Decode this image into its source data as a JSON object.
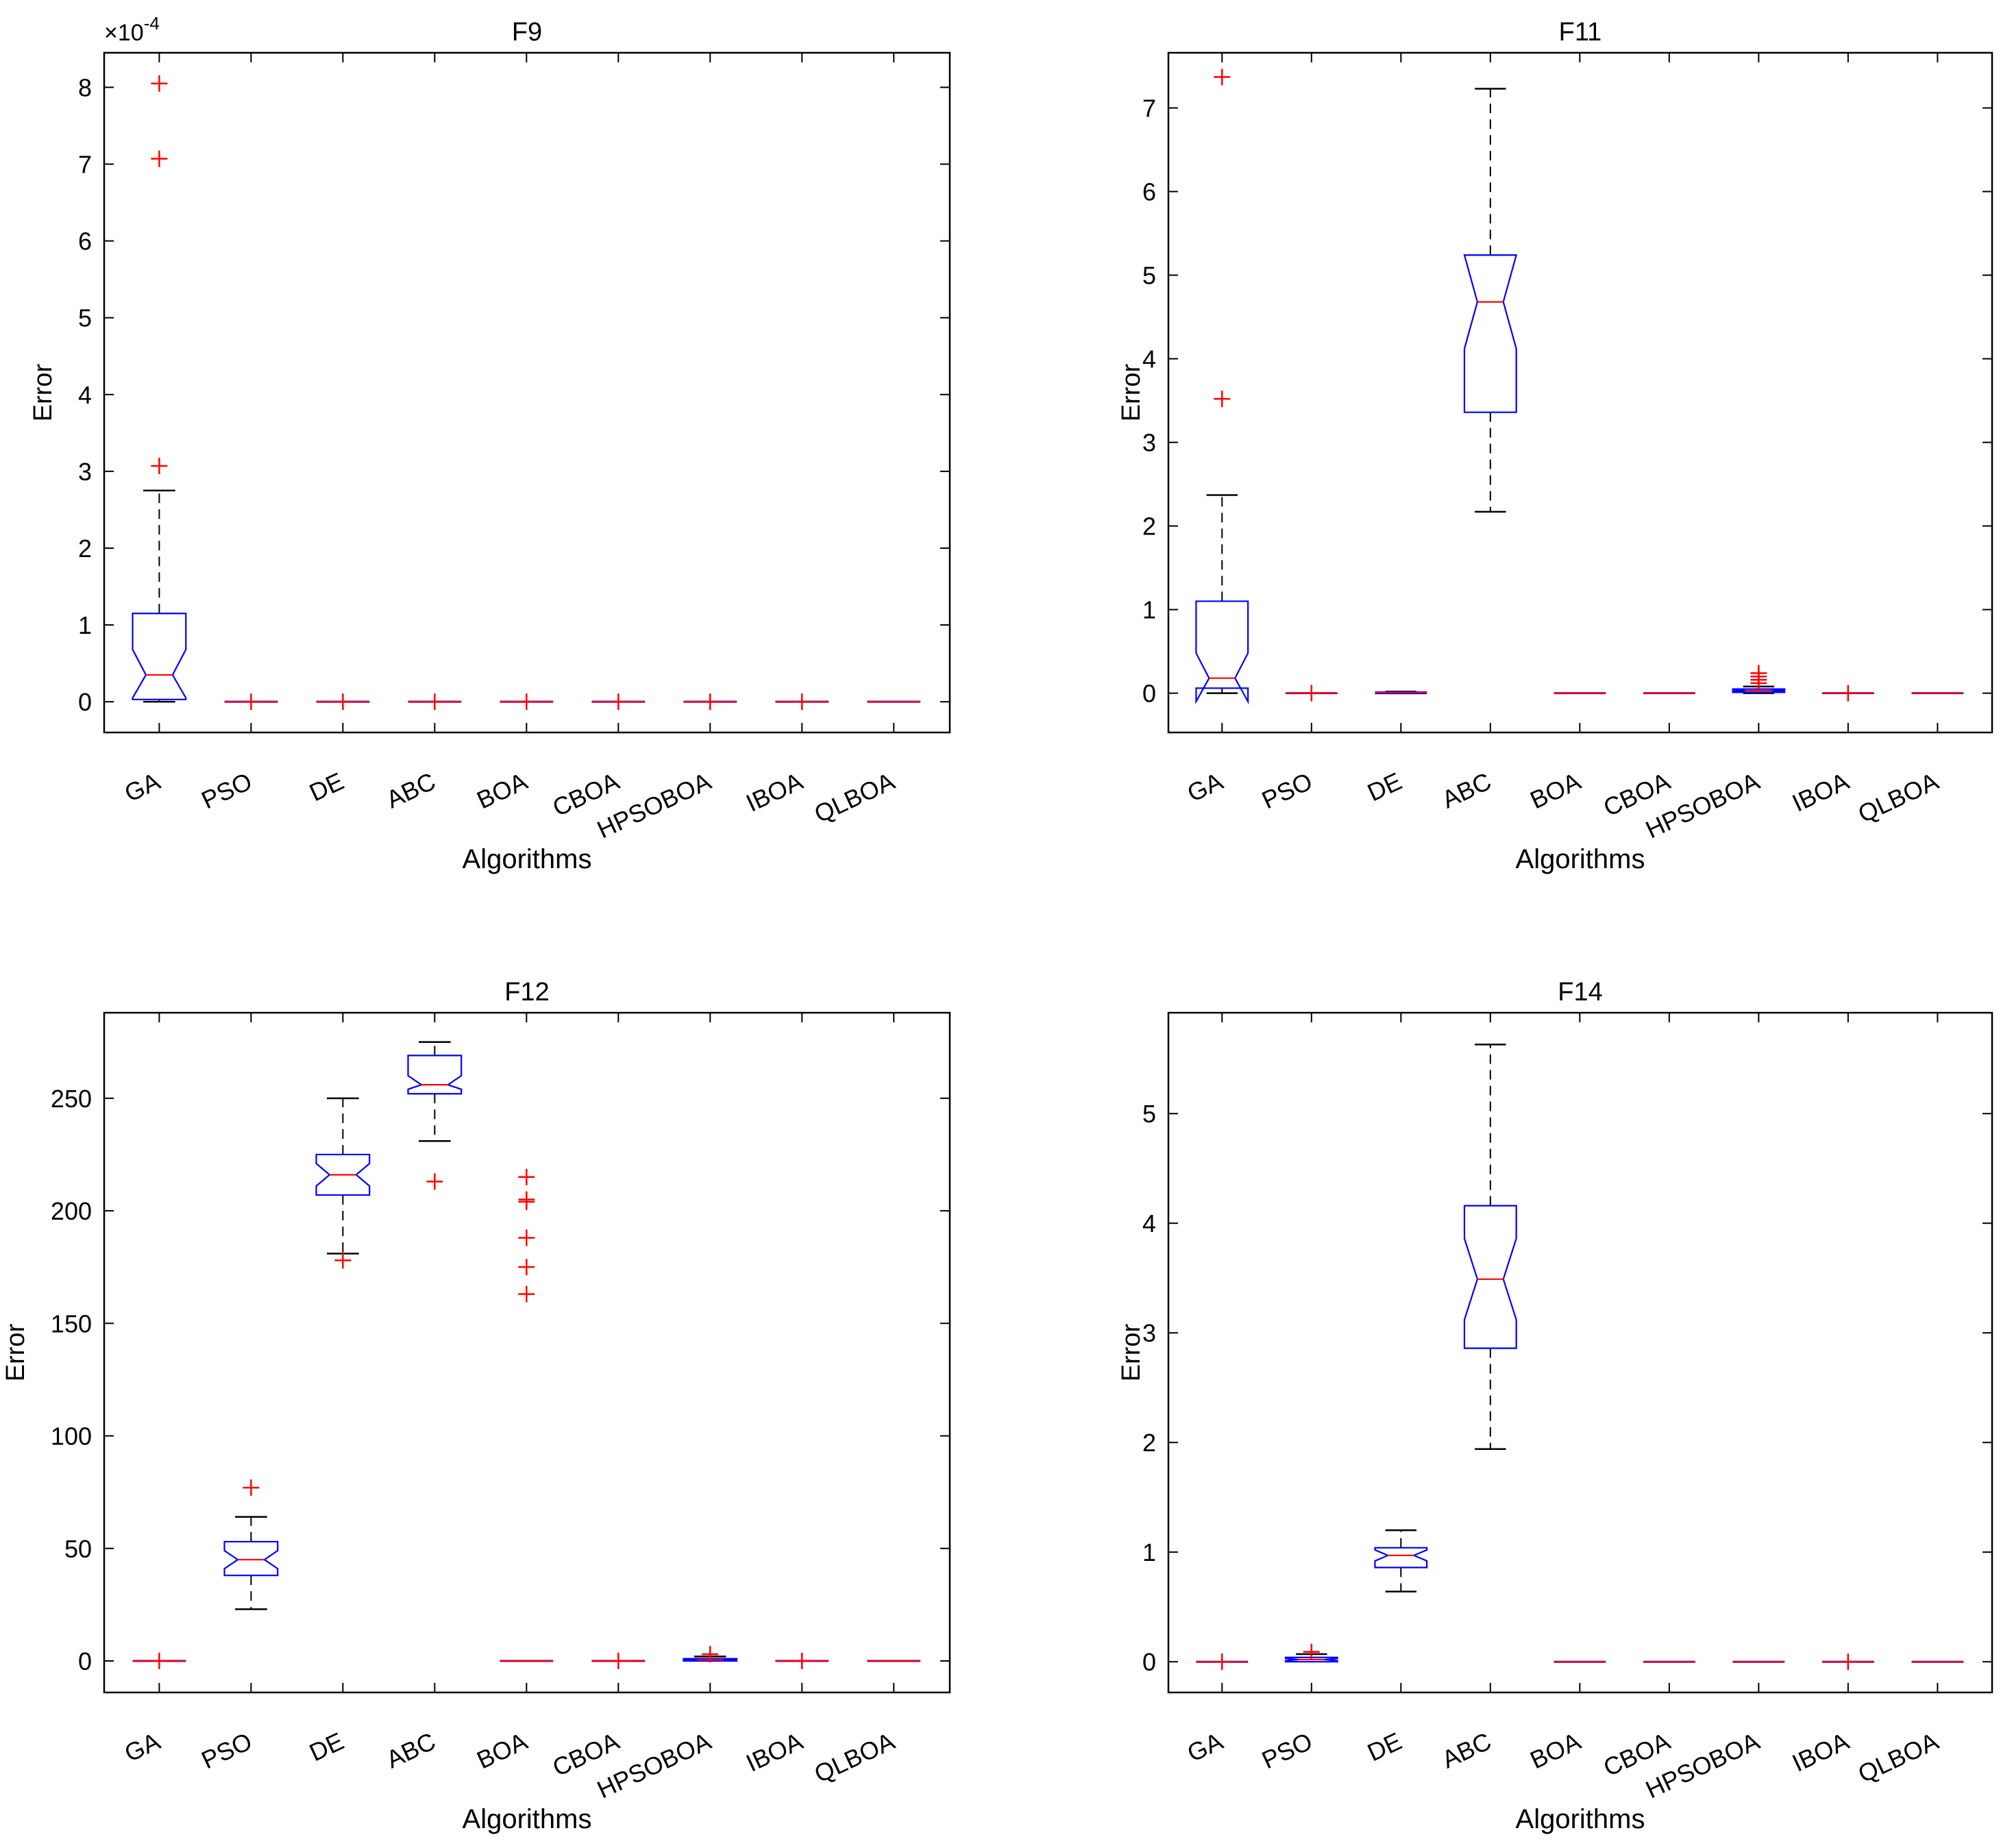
{
  "chart_data": [
    {
      "type": "boxplot",
      "title": "F9",
      "xlabel": "Algorithms",
      "ylabel": "Error",
      "exponent_label": "×10",
      "exponent_power": "-4",
      "scale": 0.0001,
      "ylim": [
        -0.4,
        8.45
      ],
      "yticks": [
        0,
        1,
        2,
        3,
        4,
        5,
        6,
        7,
        8
      ],
      "categories": [
        "GA",
        "PSO",
        "DE",
        "ABC",
        "BOA",
        "CBOA",
        "HPSOBOA",
        "IBOA",
        "QLBOA"
      ],
      "boxes": [
        {
          "wl": 0,
          "q1": 0.03,
          "med": 0.35,
          "q3": 1.15,
          "wh": 2.75,
          "nlo": 0.05,
          "nhi": 0.68,
          "outliers": [
            3.07,
            7.07,
            8.05
          ]
        },
        {
          "wl": 0,
          "q1": 0,
          "med": 0,
          "q3": 0,
          "wh": 0,
          "nlo": 0,
          "nhi": 0,
          "outliers": [
            0
          ]
        },
        {
          "wl": 0,
          "q1": 0,
          "med": 0,
          "q3": 0,
          "wh": 0,
          "nlo": 0,
          "nhi": 0,
          "outliers": [
            0
          ]
        },
        {
          "wl": 0,
          "q1": 0,
          "med": 0,
          "q3": 0,
          "wh": 0,
          "nlo": 0,
          "nhi": 0,
          "outliers": [
            0
          ]
        },
        {
          "wl": 0,
          "q1": 0,
          "med": 0,
          "q3": 0,
          "wh": 0,
          "nlo": 0,
          "nhi": 0,
          "outliers": [
            0
          ]
        },
        {
          "wl": 0,
          "q1": 0,
          "med": 0,
          "q3": 0,
          "wh": 0,
          "nlo": 0,
          "nhi": 0,
          "outliers": [
            0
          ]
        },
        {
          "wl": 0,
          "q1": 0,
          "med": 0,
          "q3": 0,
          "wh": 0,
          "nlo": 0,
          "nhi": 0,
          "outliers": [
            0
          ]
        },
        {
          "wl": 0,
          "q1": 0,
          "med": 0,
          "q3": 0,
          "wh": 0,
          "nlo": 0,
          "nhi": 0,
          "outliers": [
            0
          ]
        },
        {
          "wl": 0,
          "q1": 0,
          "med": 0,
          "q3": 0,
          "wh": 0,
          "nlo": 0,
          "nhi": 0,
          "outliers": []
        }
      ]
    },
    {
      "type": "boxplot",
      "title": "F11",
      "xlabel": "Algorithms",
      "ylabel": "Error",
      "ylim": [
        -0.47,
        7.66
      ],
      "yticks": [
        0,
        1,
        2,
        3,
        4,
        5,
        6,
        7
      ],
      "categories": [
        "GA",
        "PSO",
        "DE",
        "ABC",
        "BOA",
        "CBOA",
        "HPSOBOA",
        "IBOA",
        "QLBOA"
      ],
      "boxes": [
        {
          "wl": 0,
          "q1": 0.06,
          "med": 0.18,
          "q3": 1.1,
          "wh": 2.37,
          "nlo": -0.1,
          "nhi": 0.48,
          "outliers": [
            3.52,
            7.37
          ]
        },
        {
          "wl": 0,
          "q1": 0,
          "med": 0,
          "q3": 0,
          "wh": 0,
          "nlo": 0,
          "nhi": 0,
          "outliers": [
            0
          ]
        },
        {
          "wl": 0,
          "q1": 0,
          "med": 0.01,
          "q3": 0.01,
          "wh": 0.02,
          "nlo": 0,
          "nhi": 0.01,
          "outliers": []
        },
        {
          "wl": 2.17,
          "q1": 3.36,
          "med": 4.68,
          "q3": 5.24,
          "wh": 7.23,
          "nlo": 4.12,
          "nhi": 5.24,
          "outliers": []
        },
        {
          "wl": 0,
          "q1": 0,
          "med": 0,
          "q3": 0,
          "wh": 0,
          "nlo": 0,
          "nhi": 0,
          "outliers": []
        },
        {
          "wl": 0,
          "q1": 0,
          "med": 0,
          "q3": 0,
          "wh": 0,
          "nlo": 0,
          "nhi": 0,
          "outliers": []
        },
        {
          "wl": 0,
          "q1": 0.01,
          "med": 0.03,
          "q3": 0.05,
          "wh": 0.08,
          "nlo": 0.02,
          "nhi": 0.04,
          "outliers": [
            0.12,
            0.16,
            0.2,
            0.24
          ]
        },
        {
          "wl": 0,
          "q1": 0,
          "med": 0,
          "q3": 0,
          "wh": 0,
          "nlo": 0,
          "nhi": 0,
          "outliers": [
            0
          ]
        },
        {
          "wl": 0,
          "q1": 0,
          "med": 0,
          "q3": 0,
          "wh": 0,
          "nlo": 0,
          "nhi": 0,
          "outliers": []
        }
      ]
    },
    {
      "type": "boxplot",
      "title": "F12",
      "xlabel": "Algorithms",
      "ylabel": "Error",
      "ylim": [
        -14,
        288
      ],
      "yticks": [
        0,
        50,
        100,
        150,
        200,
        250
      ],
      "categories": [
        "GA",
        "PSO",
        "DE",
        "ABC",
        "BOA",
        "CBOA",
        "HPSOBOA",
        "IBOA",
        "QLBOA"
      ],
      "boxes": [
        {
          "wl": 0,
          "q1": 0,
          "med": 0,
          "q3": 0,
          "wh": 0,
          "nlo": 0,
          "nhi": 0,
          "outliers": [
            0
          ]
        },
        {
          "wl": 23,
          "q1": 38,
          "med": 45,
          "q3": 53,
          "wh": 64,
          "nlo": 41,
          "nhi": 49,
          "outliers": [
            77
          ]
        },
        {
          "wl": 181,
          "q1": 207,
          "med": 216,
          "q3": 225,
          "wh": 250,
          "nlo": 211,
          "nhi": 221,
          "outliers": [
            178
          ]
        },
        {
          "wl": 231,
          "q1": 252,
          "med": 256,
          "q3": 269,
          "wh": 275,
          "nlo": 254,
          "nhi": 260,
          "outliers": [
            213
          ]
        },
        {
          "wl": 0,
          "q1": 0,
          "med": 0,
          "q3": 0,
          "wh": 0,
          "nlo": 0,
          "nhi": 0,
          "outliers": [
            163,
            175,
            188,
            204,
            205,
            215
          ]
        },
        {
          "wl": 0,
          "q1": 0,
          "med": 0,
          "q3": 0,
          "wh": 0,
          "nlo": 0,
          "nhi": 0,
          "outliers": [
            0
          ]
        },
        {
          "wl": 0,
          "q1": 0,
          "med": 0.5,
          "q3": 1,
          "wh": 2,
          "nlo": 0.3,
          "nhi": 0.7,
          "outliers": [
            3
          ]
        },
        {
          "wl": 0,
          "q1": 0,
          "med": 0,
          "q3": 0,
          "wh": 0,
          "nlo": 0,
          "nhi": 0,
          "outliers": [
            0
          ]
        },
        {
          "wl": 0,
          "q1": 0,
          "med": 0,
          "q3": 0,
          "wh": 0,
          "nlo": 0,
          "nhi": 0,
          "outliers": []
        }
      ]
    },
    {
      "type": "boxplot",
      "title": "F14",
      "xlabel": "Algorithms",
      "ylabel": "Error",
      "ylim": [
        -0.28,
        5.92
      ],
      "yticks": [
        0,
        1,
        2,
        3,
        4,
        5
      ],
      "categories": [
        "GA",
        "PSO",
        "DE",
        "ABC",
        "BOA",
        "CBOA",
        "HPSOBOA",
        "IBOA",
        "QLBOA"
      ],
      "boxes": [
        {
          "wl": 0,
          "q1": 0,
          "med": 0,
          "q3": 0,
          "wh": 0,
          "nlo": 0,
          "nhi": 0,
          "outliers": [
            0
          ]
        },
        {
          "wl": 0,
          "q1": 0,
          "med": 0.02,
          "q3": 0.04,
          "wh": 0.07,
          "nlo": 0.01,
          "nhi": 0.03,
          "outliers": [
            0.09
          ]
        },
        {
          "wl": 0.64,
          "q1": 0.86,
          "med": 0.97,
          "q3": 1.04,
          "wh": 1.2,
          "nlo": 0.92,
          "nhi": 1.02,
          "outliers": []
        },
        {
          "wl": 1.94,
          "q1": 2.86,
          "med": 3.49,
          "q3": 4.16,
          "wh": 5.63,
          "nlo": 3.12,
          "nhi": 3.86,
          "outliers": []
        },
        {
          "wl": 0,
          "q1": 0,
          "med": 0,
          "q3": 0,
          "wh": 0,
          "nlo": 0,
          "nhi": 0,
          "outliers": []
        },
        {
          "wl": 0,
          "q1": 0,
          "med": 0,
          "q3": 0,
          "wh": 0,
          "nlo": 0,
          "nhi": 0,
          "outliers": []
        },
        {
          "wl": 0,
          "q1": 0,
          "med": 0,
          "q3": 0,
          "wh": 0,
          "nlo": 0,
          "nhi": 0,
          "outliers": []
        },
        {
          "wl": 0,
          "q1": 0,
          "med": 0,
          "q3": 0,
          "wh": 0,
          "nlo": 0,
          "nhi": 0,
          "outliers": [
            0
          ]
        },
        {
          "wl": 0,
          "q1": 0,
          "med": 0,
          "q3": 0,
          "wh": 0,
          "nlo": 0,
          "nhi": 0,
          "outliers": []
        }
      ]
    }
  ],
  "colors": {
    "box": "#0000ff",
    "median": "#ff0000",
    "outlier": "#ff0000",
    "whisker": "#000000",
    "axes": "#000000"
  }
}
